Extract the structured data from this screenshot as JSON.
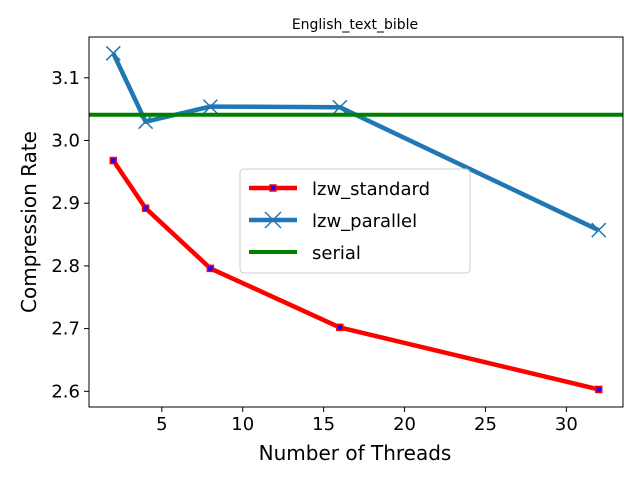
{
  "chart_data": {
    "type": "line",
    "title": "English_text_bible",
    "xlabel": "Number of Threads",
    "ylabel": "Compression Rate",
    "xlim": [
      0.5,
      33.5
    ],
    "ylim": [
      2.575,
      3.165
    ],
    "x_ticks": [
      5,
      10,
      15,
      20,
      25,
      30
    ],
    "y_ticks": [
      2.6,
      2.7,
      2.8,
      2.9,
      3.0,
      3.1
    ],
    "x_tick_labels": [
      "5",
      "10",
      "15",
      "20",
      "25",
      "30"
    ],
    "y_tick_labels": [
      "2.6",
      "2.7",
      "2.8",
      "2.9",
      "3.0",
      "3.1"
    ],
    "grid": false,
    "legend_position": "center-right",
    "series": [
      {
        "name": "lzw_standard",
        "color": "#ff0000",
        "marker": "square",
        "marker_color": "#1f00ff",
        "x": [
          2,
          4,
          8,
          16,
          32
        ],
        "y": [
          2.968,
          2.892,
          2.796,
          2.702,
          2.603
        ]
      },
      {
        "name": "lzw_parallel",
        "color": "#1f77b4",
        "marker": "x",
        "x": [
          2,
          4,
          8,
          16,
          32
        ],
        "y": [
          3.139,
          3.03,
          3.054,
          3.053,
          2.857
        ]
      },
      {
        "name": "serial",
        "color": "#008000",
        "marker": "none",
        "hline": 3.041
      }
    ]
  }
}
